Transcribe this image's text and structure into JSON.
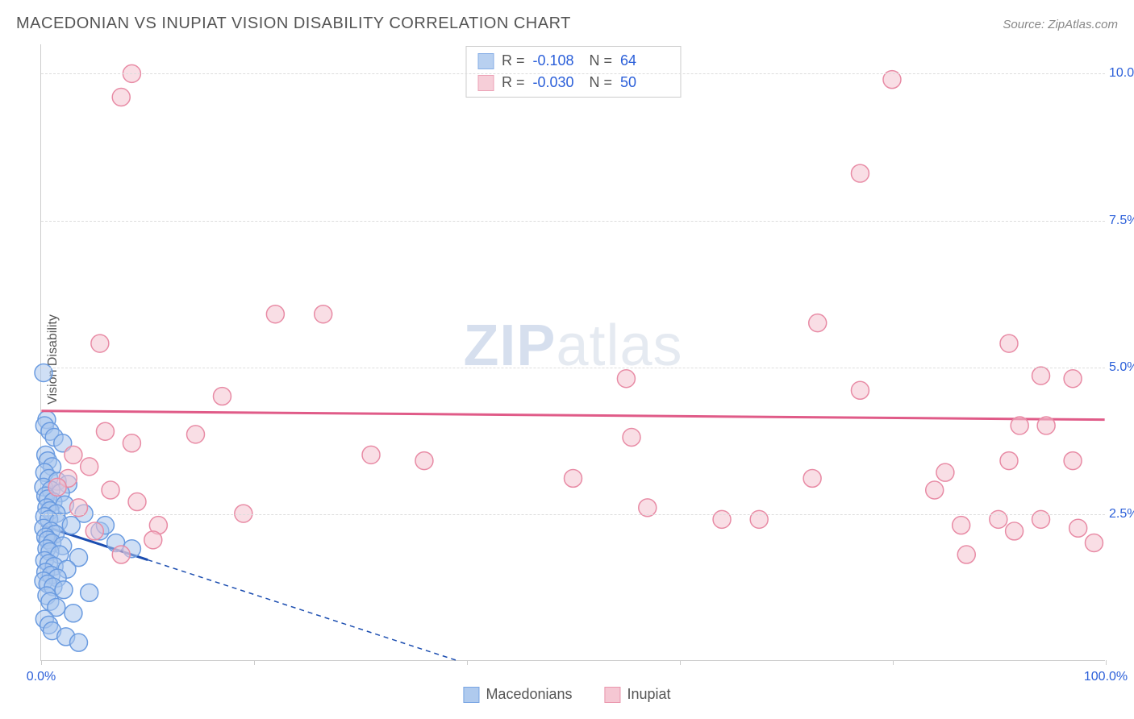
{
  "header": {
    "title": "MACEDONIAN VS INUPIAT VISION DISABILITY CORRELATION CHART",
    "source_prefix": "Source: ",
    "source_link": "ZipAtlas.com"
  },
  "chart": {
    "type": "scatter",
    "ylabel": "Vision Disability",
    "xlim": [
      0,
      100
    ],
    "ylim": [
      0,
      10.5
    ],
    "xticks": [
      0,
      20,
      40,
      60,
      80,
      100
    ],
    "xtick_labels": {
      "0": "0.0%",
      "100": "100.0%"
    },
    "yticks": [
      2.5,
      5.0,
      7.5,
      10.0
    ],
    "ytick_labels": [
      "2.5%",
      "5.0%",
      "7.5%",
      "10.0%"
    ],
    "background_color": "#ffffff",
    "grid_color": "#dddddd",
    "axis_color": "#cccccc",
    "marker_radius": 11,
    "marker_stroke_width": 1.5,
    "series": [
      {
        "name": "Macedonians",
        "fill": "#a7c5ed",
        "fill_opacity": 0.55,
        "stroke": "#6a9be0",
        "trend": {
          "color": "#1b4db0",
          "width": 3,
          "y_at_x0": 2.3,
          "y_at_x100": -3.6,
          "dash_after_x": 10
        },
        "R": "-0.108",
        "N": "64",
        "points": [
          [
            0.2,
            4.9
          ],
          [
            0.5,
            4.1
          ],
          [
            0.3,
            4.0
          ],
          [
            0.8,
            3.9
          ],
          [
            1.2,
            3.8
          ],
          [
            2.0,
            3.7
          ],
          [
            0.4,
            3.5
          ],
          [
            0.6,
            3.4
          ],
          [
            1.0,
            3.3
          ],
          [
            0.3,
            3.2
          ],
          [
            0.7,
            3.1
          ],
          [
            1.5,
            3.05
          ],
          [
            2.5,
            3.0
          ],
          [
            0.2,
            2.95
          ],
          [
            0.9,
            2.9
          ],
          [
            1.8,
            2.85
          ],
          [
            0.4,
            2.8
          ],
          [
            0.6,
            2.75
          ],
          [
            1.1,
            2.7
          ],
          [
            2.2,
            2.65
          ],
          [
            0.5,
            2.6
          ],
          [
            0.8,
            2.55
          ],
          [
            1.4,
            2.5
          ],
          [
            0.3,
            2.45
          ],
          [
            0.7,
            2.4
          ],
          [
            1.6,
            2.35
          ],
          [
            2.8,
            2.3
          ],
          [
            0.2,
            2.25
          ],
          [
            0.9,
            2.2
          ],
          [
            1.3,
            2.15
          ],
          [
            0.4,
            2.1
          ],
          [
            0.6,
            2.05
          ],
          [
            1.0,
            2.0
          ],
          [
            2.0,
            1.95
          ],
          [
            0.5,
            1.9
          ],
          [
            0.8,
            1.85
          ],
          [
            1.7,
            1.8
          ],
          [
            3.5,
            1.75
          ],
          [
            0.3,
            1.7
          ],
          [
            0.7,
            1.65
          ],
          [
            1.2,
            1.6
          ],
          [
            2.4,
            1.55
          ],
          [
            0.4,
            1.5
          ],
          [
            0.9,
            1.45
          ],
          [
            1.5,
            1.4
          ],
          [
            0.2,
            1.35
          ],
          [
            0.6,
            1.3
          ],
          [
            1.1,
            1.25
          ],
          [
            2.1,
            1.2
          ],
          [
            4.5,
            1.15
          ],
          [
            0.5,
            1.1
          ],
          [
            0.8,
            1.0
          ],
          [
            1.4,
            0.9
          ],
          [
            3.0,
            0.8
          ],
          [
            0.3,
            0.7
          ],
          [
            0.7,
            0.6
          ],
          [
            1.0,
            0.5
          ],
          [
            2.3,
            0.4
          ],
          [
            5.5,
            2.2
          ],
          [
            7.0,
            2.0
          ],
          [
            8.5,
            1.9
          ],
          [
            4.0,
            2.5
          ],
          [
            6.0,
            2.3
          ],
          [
            3.5,
            0.3
          ]
        ]
      },
      {
        "name": "Inupiat",
        "fill": "#f4c2cf",
        "fill_opacity": 0.55,
        "stroke": "#e88ba5",
        "trend": {
          "color": "#e05b88",
          "width": 3,
          "y_at_x0": 4.25,
          "y_at_x100": 4.1
        },
        "R": "-0.030",
        "N": "50",
        "points": [
          [
            8.5,
            10.0
          ],
          [
            7.5,
            9.6
          ],
          [
            80.0,
            9.9
          ],
          [
            77.0,
            8.3
          ],
          [
            22.0,
            5.9
          ],
          [
            26.5,
            5.9
          ],
          [
            5.5,
            5.4
          ],
          [
            91.0,
            5.4
          ],
          [
            94.0,
            4.85
          ],
          [
            97.0,
            4.8
          ],
          [
            55.0,
            4.8
          ],
          [
            73.0,
            5.75
          ],
          [
            77.0,
            4.6
          ],
          [
            92.0,
            4.0
          ],
          [
            94.5,
            4.0
          ],
          [
            85.0,
            3.2
          ],
          [
            91.0,
            3.4
          ],
          [
            97.0,
            3.4
          ],
          [
            84.0,
            2.9
          ],
          [
            90.0,
            2.4
          ],
          [
            94.0,
            2.4
          ],
          [
            86.5,
            2.3
          ],
          [
            97.5,
            2.25
          ],
          [
            87.0,
            1.8
          ],
          [
            91.5,
            2.2
          ],
          [
            99.0,
            2.0
          ],
          [
            50.0,
            3.1
          ],
          [
            55.5,
            3.8
          ],
          [
            57.0,
            2.6
          ],
          [
            67.5,
            2.4
          ],
          [
            64.0,
            2.4
          ],
          [
            72.5,
            3.1
          ],
          [
            17.0,
            4.5
          ],
          [
            14.5,
            3.85
          ],
          [
            6.0,
            3.9
          ],
          [
            8.5,
            3.7
          ],
          [
            3.0,
            3.5
          ],
          [
            4.5,
            3.3
          ],
          [
            2.5,
            3.1
          ],
          [
            6.5,
            2.9
          ],
          [
            9.0,
            2.7
          ],
          [
            11.0,
            2.3
          ],
          [
            19.0,
            2.5
          ],
          [
            31.0,
            3.5
          ],
          [
            36.0,
            3.4
          ],
          [
            1.5,
            2.95
          ],
          [
            3.5,
            2.6
          ],
          [
            5.0,
            2.2
          ],
          [
            7.5,
            1.8
          ],
          [
            10.5,
            2.05
          ]
        ]
      }
    ],
    "watermark": {
      "text_bold": "ZIP",
      "text_light": "atlas"
    }
  },
  "stats_box": {
    "r_label": "R =",
    "n_label": "N ="
  },
  "legend": {
    "items": [
      "Macedonians",
      "Inupiat"
    ]
  }
}
